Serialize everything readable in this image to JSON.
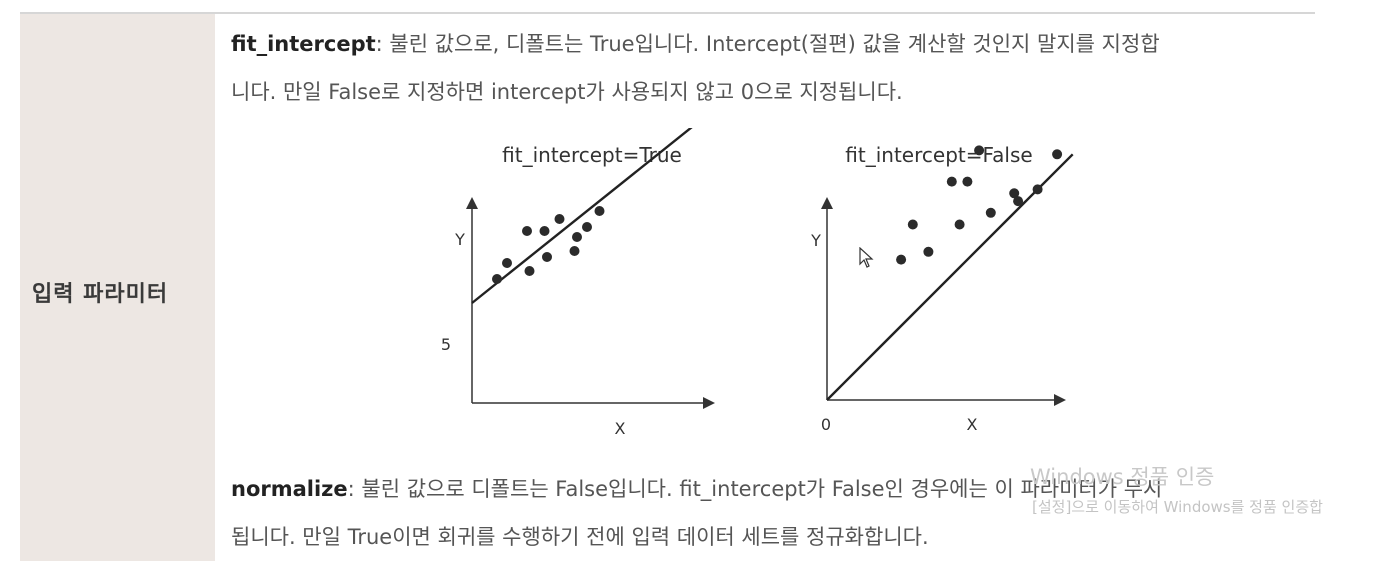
{
  "row_label": "입력 파라미터",
  "fit_intercept": {
    "name": "fit_intercept",
    "line1": ": 불린 값으로, 디폴트는 True입니다. Intercept(절편) 값을 계산할 것인지 말지를 지정합",
    "line2": "니다. 만일 False로 지정하면 intercept가 사용되지 않고 0으로 지정됩니다."
  },
  "normalize": {
    "name": "normalize",
    "line1": ": 불린 값으로 디폴트는 False입니다. fit_intercept가 False인 경우에는 이 파라미터가 무시",
    "line2": "됩니다. 만일 True이면 회귀를 수행하기 전에 입력 데이터 세트를 정규화합니다."
  },
  "watermark": {
    "title": "Windows 정품 인증",
    "subtitle": "[설정]으로 이동하여 Windows를 정품 인증합"
  },
  "chart_data": [
    {
      "type": "scatter",
      "title": "fit_intercept=True",
      "xlabel": "X",
      "ylabel": "Y",
      "intercept_label": "5",
      "points": [
        [
          1.0,
          6.2
        ],
        [
          1.4,
          7.0
        ],
        [
          2.2,
          8.6
        ],
        [
          2.3,
          6.6
        ],
        [
          2.9,
          8.6
        ],
        [
          3.0,
          7.3
        ],
        [
          3.5,
          9.2
        ],
        [
          4.1,
          7.6
        ],
        [
          4.2,
          8.3
        ],
        [
          4.6,
          8.8
        ],
        [
          5.1,
          9.6
        ]
      ],
      "line": {
        "slope": 1.0,
        "intercept": 5
      }
    },
    {
      "type": "scatter",
      "title": "fit_intercept=False",
      "xlabel": "X",
      "ylabel": "Y",
      "origin_label": "0",
      "points": [
        [
          1.9,
          3.6
        ],
        [
          2.2,
          4.5
        ],
        [
          2.6,
          3.8
        ],
        [
          3.2,
          5.6
        ],
        [
          3.4,
          4.5
        ],
        [
          3.6,
          5.6
        ],
        [
          3.9,
          6.4
        ],
        [
          4.2,
          4.8
        ],
        [
          4.8,
          5.3
        ],
        [
          4.9,
          5.1
        ],
        [
          5.4,
          5.4
        ],
        [
          5.9,
          6.3
        ]
      ],
      "line": {
        "slope": 1.0,
        "intercept": 0
      }
    }
  ]
}
